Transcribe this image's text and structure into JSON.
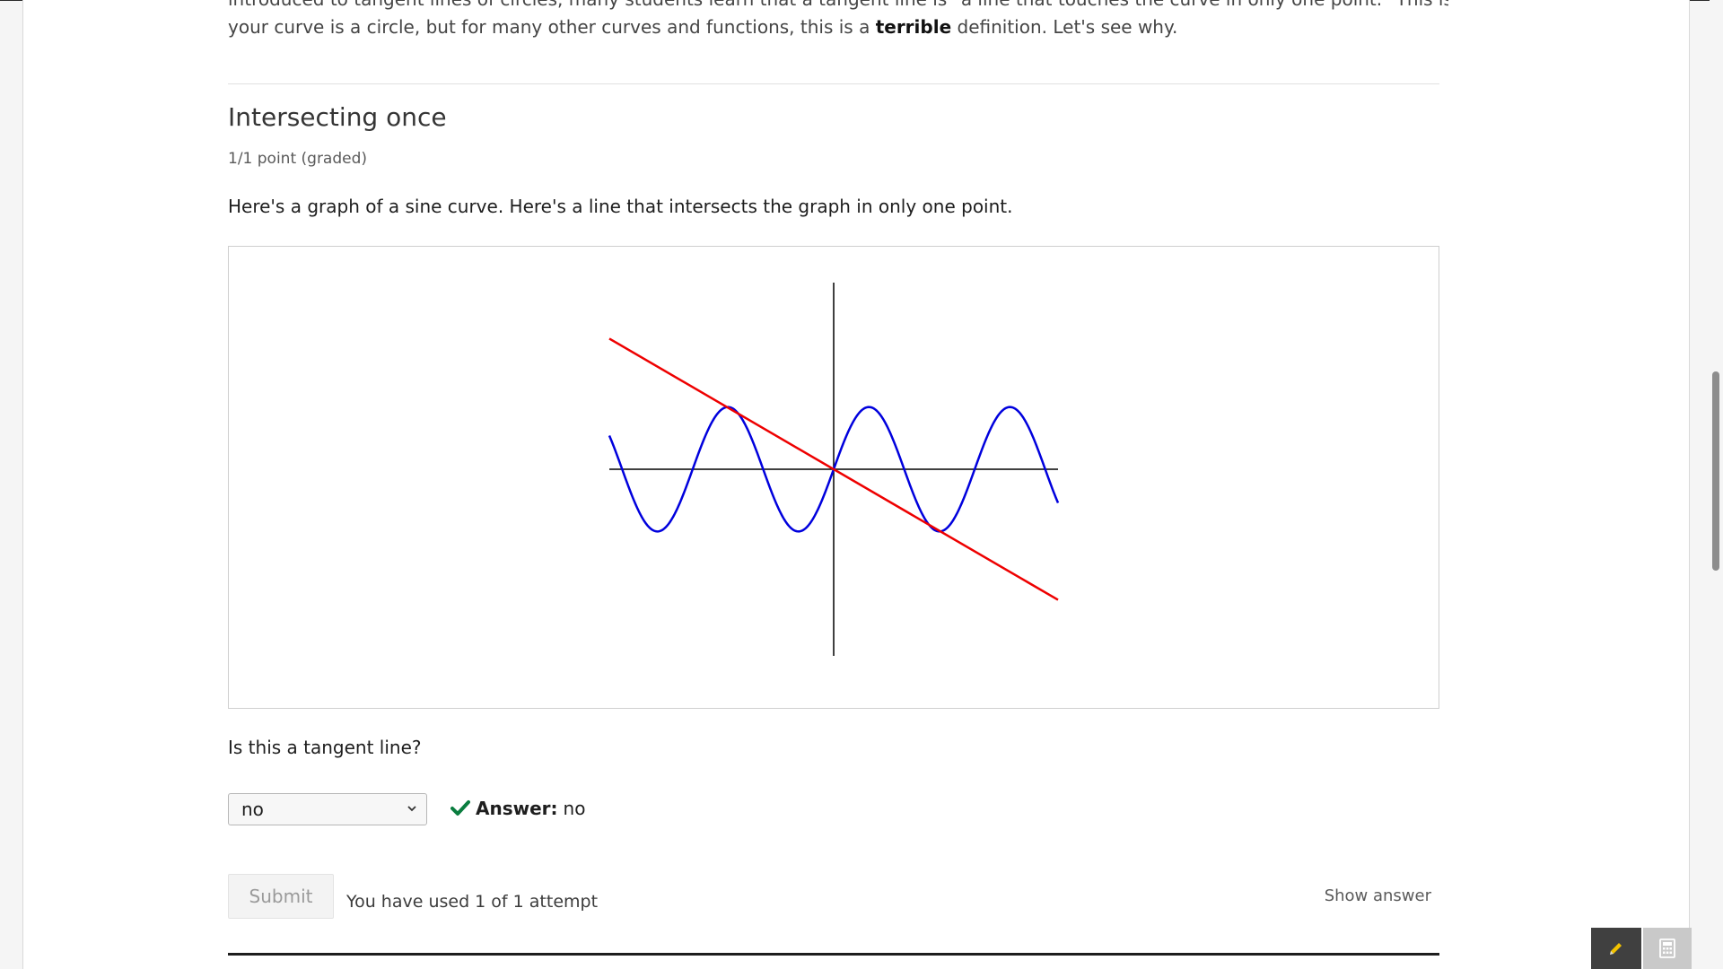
{
  "intro": {
    "line1": "introduced to tangent lines of circles, many students learn that a tangent line is \"a line that touches the curve in only one point.\" This is true if",
    "line2_start": "your curve is a circle, but for many other curves and functions, this is a ",
    "line2_bold": "terrible",
    "line2_end": " definition. Let's see why."
  },
  "problem": {
    "title": "Intersecting once",
    "progress": "1/1 point (graded)",
    "prompt": "Here's a graph of a sine curve. Here's a line that intersects the graph in only one point.",
    "question": "Is this a tangent line?",
    "select_value": "no",
    "answer_label": "Answer:",
    "answer_value": "no",
    "submit_label": "Submit",
    "attempts_text": "You have used 1 of 1 attempt",
    "show_answer_label": "Show answer"
  },
  "graph": {
    "curve": "sine",
    "x_range": [
      -3.5,
      3.5
    ],
    "y_range": [
      -3,
      3
    ],
    "sine_amplitude": 1,
    "sine_period": 2.2,
    "line_slope": -0.6,
    "curve_color": "#0000dd",
    "line_color": "#ee0000",
    "axis_color": "#000000"
  },
  "colors": {
    "check": "#0a7d3f",
    "notes_icon": "#f2c200"
  },
  "icons": {
    "check": "checkmark-icon",
    "chevron": "chevron-down-icon",
    "notes": "pencil-icon",
    "calculator": "calculator-icon"
  }
}
